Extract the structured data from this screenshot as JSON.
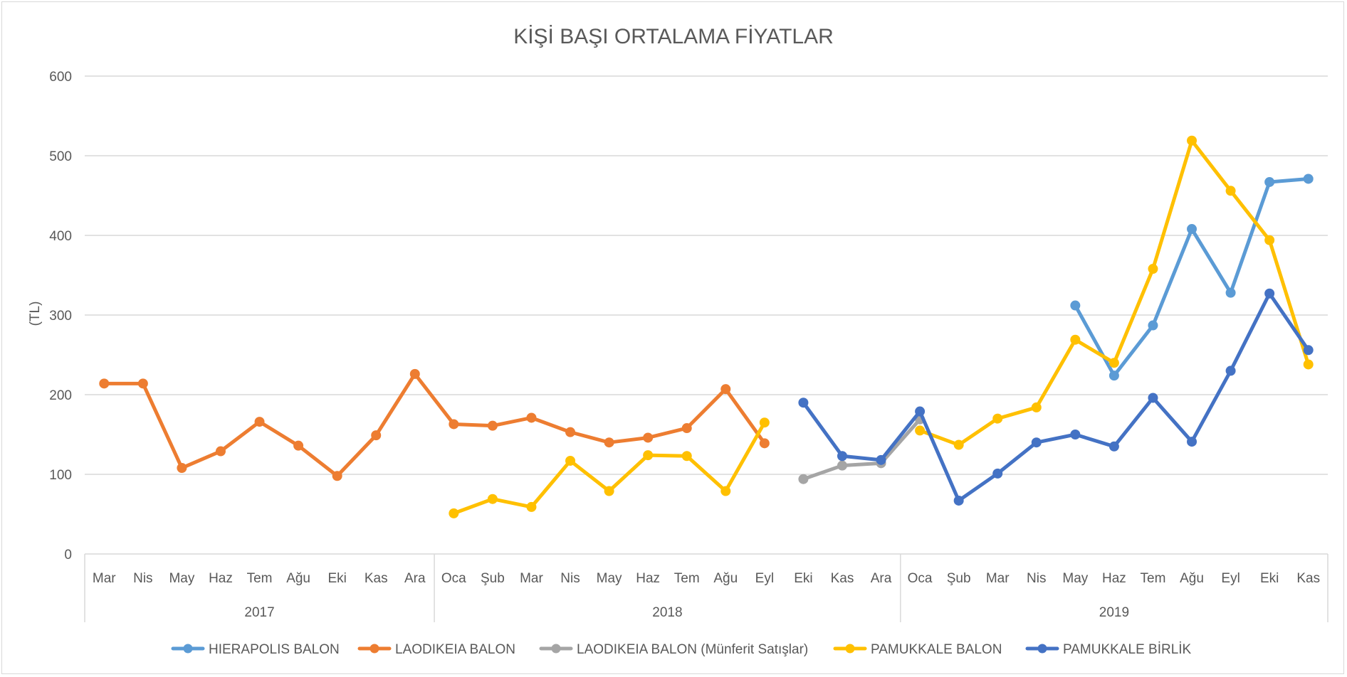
{
  "chart_data": {
    "type": "line",
    "title": "KİŞİ BAŞI ORTALAMA FİYATLAR",
    "ylabel": "(TL)",
    "xlabel": "",
    "ylim": [
      0,
      600
    ],
    "yticks": [
      0,
      100,
      200,
      300,
      400,
      500,
      600
    ],
    "grid": true,
    "legend_position": "bottom",
    "categories": [
      "Mar",
      "Nis",
      "May",
      "Haz",
      "Tem",
      "Ağu",
      "Eki",
      "Kas",
      "Ara",
      "Oca",
      "Şub",
      "Mar",
      "Nis",
      "May",
      "Haz",
      "Tem",
      "Ağu",
      "Eyl",
      "Eki",
      "Kas",
      "Ara",
      "Oca",
      "Şub",
      "Mar",
      "Nis",
      "May",
      "Haz",
      "Tem",
      "Ağu",
      "Eyl",
      "Eki",
      "Kas"
    ],
    "year_groups": [
      {
        "label": "2017",
        "start": 0,
        "end": 8
      },
      {
        "label": "2018",
        "start": 9,
        "end": 20
      },
      {
        "label": "2019",
        "start": 21,
        "end": 31
      }
    ],
    "series": [
      {
        "name": "HIERAPOLIS BALON",
        "color": "#5b9bd5",
        "values": [
          null,
          null,
          null,
          null,
          null,
          null,
          null,
          null,
          null,
          null,
          null,
          null,
          null,
          null,
          null,
          null,
          null,
          null,
          null,
          null,
          null,
          null,
          null,
          null,
          null,
          312,
          224,
          287,
          408,
          328,
          467,
          471
        ]
      },
      {
        "name": "LAODIKEIA BALON",
        "color": "#ed7d31",
        "values": [
          214,
          214,
          108,
          129,
          166,
          136,
          98,
          149,
          226,
          163,
          161,
          171,
          153,
          140,
          146,
          158,
          207,
          139,
          null,
          null,
          null,
          null,
          null,
          null,
          null,
          null,
          null,
          null,
          null,
          null,
          null,
          null
        ]
      },
      {
        "name": "LAODIKEIA BALON (Münferit Satışlar)",
        "color": "#a5a5a5",
        "values": [
          null,
          null,
          null,
          null,
          null,
          null,
          null,
          null,
          null,
          null,
          null,
          null,
          null,
          null,
          null,
          null,
          null,
          null,
          94,
          111,
          114,
          169,
          null,
          null,
          null,
          null,
          null,
          null,
          null,
          null,
          null,
          null
        ]
      },
      {
        "name": "PAMUKKALE BALON",
        "color": "#ffc000",
        "values": [
          null,
          null,
          null,
          null,
          null,
          null,
          null,
          null,
          null,
          51,
          69,
          59,
          117,
          79,
          124,
          123,
          79,
          165,
          null,
          null,
          null,
          155,
          137,
          170,
          184,
          269,
          240,
          358,
          519,
          456,
          394,
          238
        ]
      },
      {
        "name": "PAMUKKALE BİRLİK",
        "color": "#4472c4",
        "values": [
          null,
          null,
          null,
          null,
          null,
          null,
          null,
          null,
          null,
          null,
          null,
          null,
          null,
          null,
          null,
          null,
          null,
          null,
          190,
          123,
          118,
          179,
          67,
          101,
          140,
          150,
          135,
          196,
          141,
          230,
          327,
          256
        ]
      }
    ]
  }
}
